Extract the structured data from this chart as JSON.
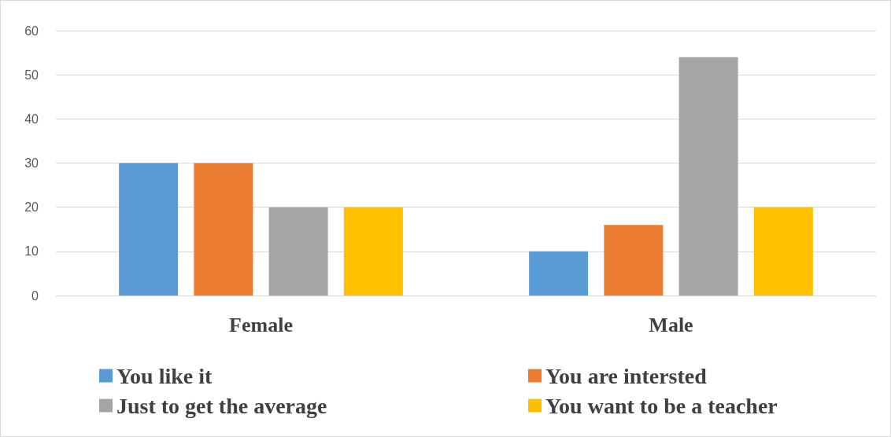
{
  "chart_data": {
    "type": "bar",
    "categories": [
      "Female",
      "Male"
    ],
    "series": [
      {
        "name": "You like it",
        "color": "#5b9bd5",
        "values": [
          30,
          10
        ]
      },
      {
        "name": "You are intersted",
        "color": "#ed7d31",
        "values": [
          30,
          16
        ]
      },
      {
        "name": "Just to get the average",
        "color": "#a5a5a5",
        "values": [
          20,
          54
        ]
      },
      {
        "name": "You want to be a teacher",
        "color": "#ffc000",
        "values": [
          20,
          20
        ]
      }
    ],
    "ylim": [
      0,
      60
    ],
    "yticks": [
      0,
      10,
      20,
      30,
      40,
      50,
      60
    ],
    "grid": "y",
    "legend": "bottom"
  }
}
